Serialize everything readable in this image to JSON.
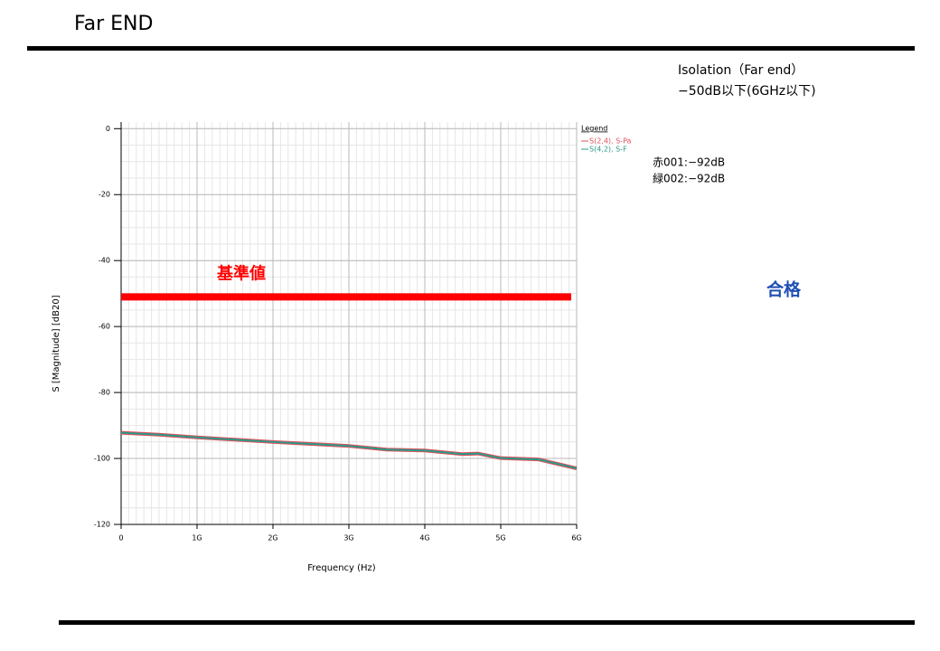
{
  "page_title": "Far END",
  "notes": [
    "Isolation（Far end）",
    "−50dB以下(6GHz以下)"
  ],
  "readouts": [
    "赤001:−92dB",
    "緑002:−92dB"
  ],
  "verdict": "合格",
  "chart_data": {
    "type": "line",
    "x_label": "Frequency (Hz)",
    "y_label": "S [Magnitude] [dB20]",
    "legend_title": "Legend",
    "x": [
      0,
      500000000,
      1000000000,
      1500000000,
      2000000000,
      2500000000,
      3000000000,
      3500000000,
      4000000000,
      4500000000,
      4700000000,
      5000000000,
      5500000000,
      6000000000
    ],
    "series": [
      {
        "name": "S(2,4), S-Pa",
        "color": "#e0505a",
        "values": [
          -92.2,
          -92.8,
          -93.6,
          -94.3,
          -95,
          -95.6,
          -96.2,
          -97.3,
          -97.6,
          -98.7,
          -98.5,
          -99.9,
          -100.3,
          -103
        ]
      },
      {
        "name": "S(4,2), S-F",
        "color": "#2a9a8a",
        "values": [
          -92.2,
          -92.8,
          -93.6,
          -94.3,
          -95,
          -95.6,
          -96.2,
          -97.3,
          -97.6,
          -98.7,
          -98.5,
          -99.9,
          -100.3,
          -103
        ]
      }
    ],
    "reference_line": {
      "value": -51,
      "label": "基準値",
      "color": "#ff0000"
    },
    "xlim": [
      0,
      6000000000
    ],
    "xticks": [
      0,
      {
        "value": 1000000000,
        "label": "1G"
      },
      {
        "value": 2000000000,
        "label": "2G"
      },
      {
        "value": 3000000000,
        "label": "3G"
      },
      {
        "value": 4000000000,
        "label": "4G"
      },
      {
        "value": 5000000000,
        "label": "5G"
      },
      {
        "value": 6000000000,
        "label": "6G"
      }
    ],
    "ylim": [
      -120,
      2
    ],
    "yticks": [
      -120,
      -100,
      -80,
      -60,
      -40,
      -20,
      0
    ],
    "grid": true
  }
}
